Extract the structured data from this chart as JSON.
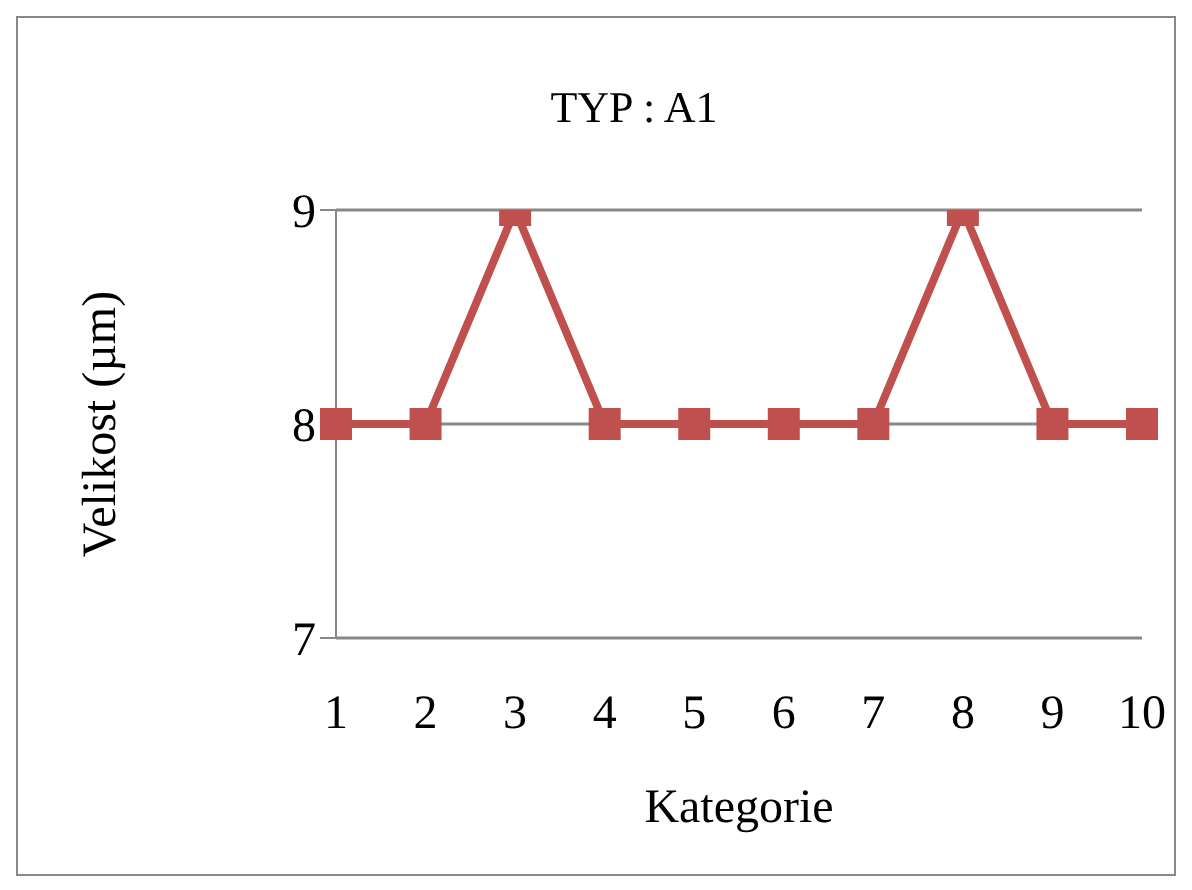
{
  "chart_data": {
    "type": "line",
    "title": "TYP :  A1",
    "xlabel": "Kategorie",
    "ylabel": "Velikost (µm)",
    "categories": [
      "1",
      "2",
      "3",
      "4",
      "5",
      "6",
      "7",
      "8",
      "9",
      "10"
    ],
    "series": [
      {
        "color": "#c0504d",
        "values": [
          8,
          8,
          9,
          8,
          8,
          8,
          8,
          9,
          8,
          8
        ]
      }
    ],
    "ylim": [
      7,
      9
    ],
    "yticks": [
      7,
      8,
      9
    ],
    "grid": "y",
    "legend": false,
    "marker": "square",
    "line_style": "solid"
  }
}
